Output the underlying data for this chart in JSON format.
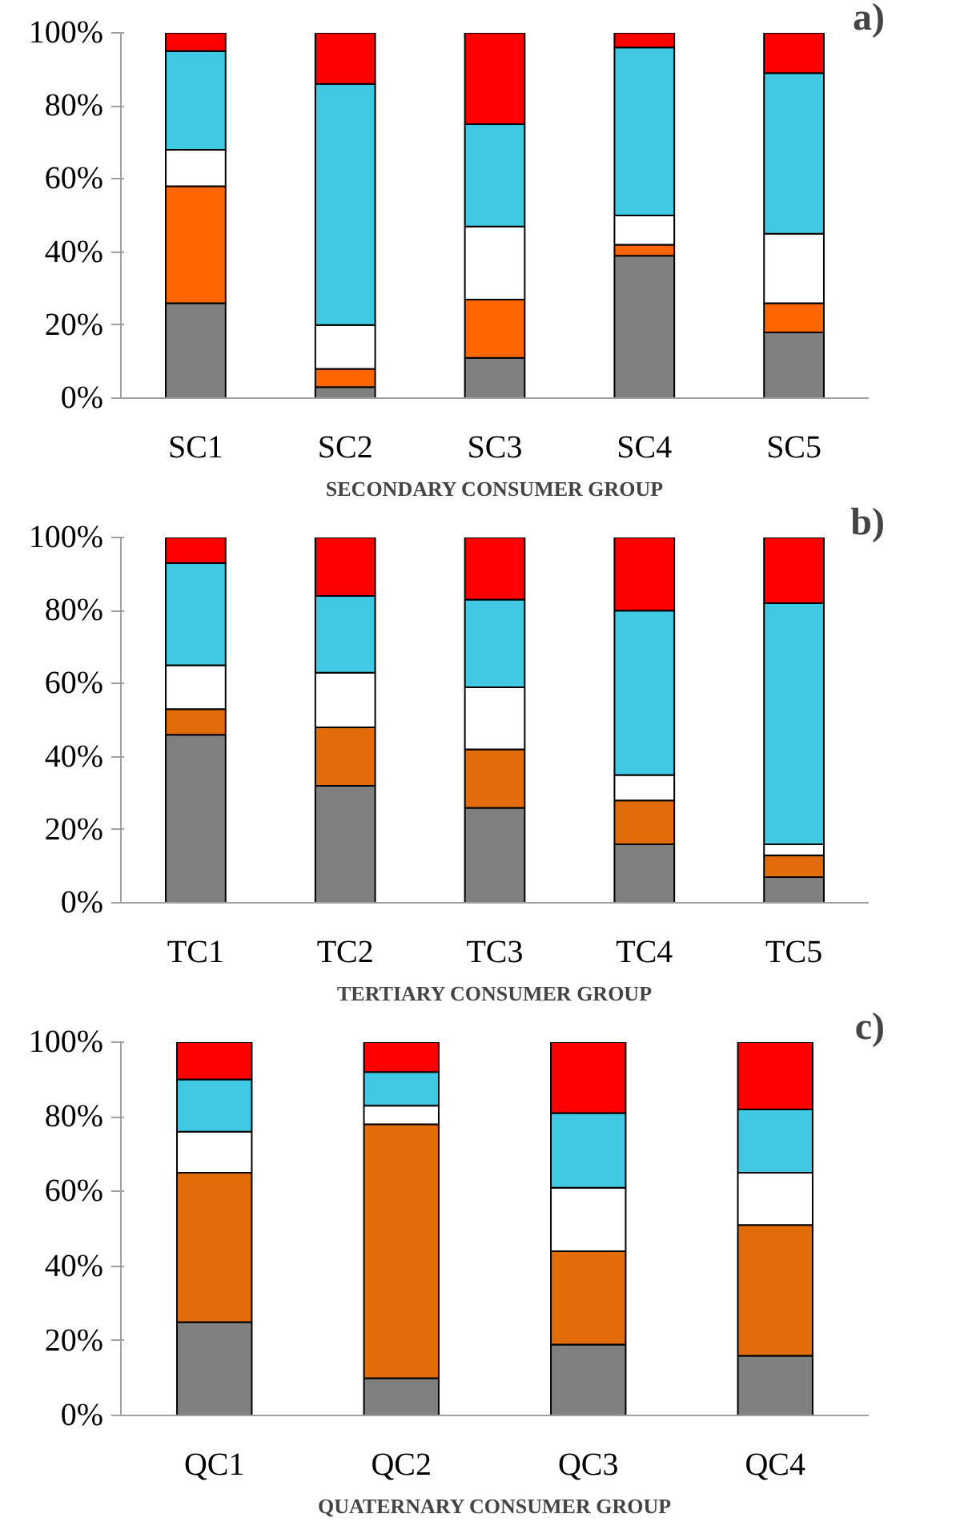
{
  "chart_data": [
    {
      "type": "bar",
      "stacked": true,
      "categories": [
        "SC1",
        "SC2",
        "SC3",
        "SC4",
        "SC5"
      ],
      "xlabel": "SECONDARY CONSUMER GROUP",
      "annotations": [
        "a)"
      ],
      "ylim": [
        0,
        100
      ],
      "yticks": [
        {
          "value": 0,
          "label": "0%"
        },
        {
          "value": 20,
          "label": "20%"
        },
        {
          "value": 40,
          "label": "40%"
        },
        {
          "value": 60,
          "label": "60%"
        },
        {
          "value": 80,
          "label": "80%"
        },
        {
          "value": 100,
          "label": "100%"
        }
      ],
      "grid": false,
      "series": [
        {
          "color": "#808080",
          "values": [
            26,
            3,
            11,
            39,
            18
          ]
        },
        {
          "color": "#ff6600",
          "values": [
            32,
            5,
            16,
            3,
            8
          ]
        },
        {
          "color": "#ffffff",
          "values": [
            10,
            12,
            20,
            8,
            19
          ]
        },
        {
          "color": "#41c8e2",
          "values": [
            27,
            66,
            28,
            46,
            44
          ]
        },
        {
          "color": "#ff0000",
          "values": [
            5,
            14,
            25,
            4,
            11
          ]
        }
      ]
    },
    {
      "type": "bar",
      "stacked": true,
      "categories": [
        "TC1",
        "TC2",
        "TC3",
        "TC4",
        "TC5"
      ],
      "xlabel": "TERTIARY CONSUMER GROUP",
      "annotations": [
        "b)"
      ],
      "ylim": [
        0,
        100
      ],
      "yticks": [
        {
          "value": 0,
          "label": "0%"
        },
        {
          "value": 20,
          "label": "20%"
        },
        {
          "value": 40,
          "label": "40%"
        },
        {
          "value": 60,
          "label": "60%"
        },
        {
          "value": 80,
          "label": "80%"
        },
        {
          "value": 100,
          "label": "100%"
        }
      ],
      "grid": false,
      "series": [
        {
          "color": "#808080",
          "values": [
            46,
            32,
            26,
            16,
            7
          ]
        },
        {
          "color": "#e36c0a",
          "values": [
            7,
            16,
            16,
            12,
            6
          ]
        },
        {
          "color": "#ffffff",
          "values": [
            12,
            15,
            17,
            7,
            3
          ]
        },
        {
          "color": "#41c8e2",
          "values": [
            28,
            21,
            24,
            45,
            66
          ]
        },
        {
          "color": "#ff0000",
          "values": [
            7,
            16,
            17,
            20,
            18
          ]
        }
      ]
    },
    {
      "type": "bar",
      "stacked": true,
      "categories": [
        "QC1",
        "QC2",
        "QC3",
        "QC4"
      ],
      "xlabel": "QUATERNARY CONSUMER GROUP",
      "annotations": [
        "c)"
      ],
      "ylim": [
        0,
        100
      ],
      "yticks": [
        {
          "value": 0,
          "label": "0%"
        },
        {
          "value": 20,
          "label": "20%"
        },
        {
          "value": 40,
          "label": "40%"
        },
        {
          "value": 60,
          "label": "60%"
        },
        {
          "value": 80,
          "label": "80%"
        },
        {
          "value": 100,
          "label": "100%"
        }
      ],
      "grid": false,
      "series": [
        {
          "color": "#808080",
          "values": [
            25,
            10,
            19,
            16
          ]
        },
        {
          "color": "#e36c0a",
          "values": [
            40,
            68,
            25,
            35
          ]
        },
        {
          "color": "#ffffff",
          "values": [
            11,
            5,
            17,
            14
          ]
        },
        {
          "color": "#41c8e2",
          "values": [
            14,
            9,
            20,
            17
          ]
        },
        {
          "color": "#ff0000",
          "values": [
            10,
            8,
            19,
            18
          ]
        }
      ]
    }
  ]
}
